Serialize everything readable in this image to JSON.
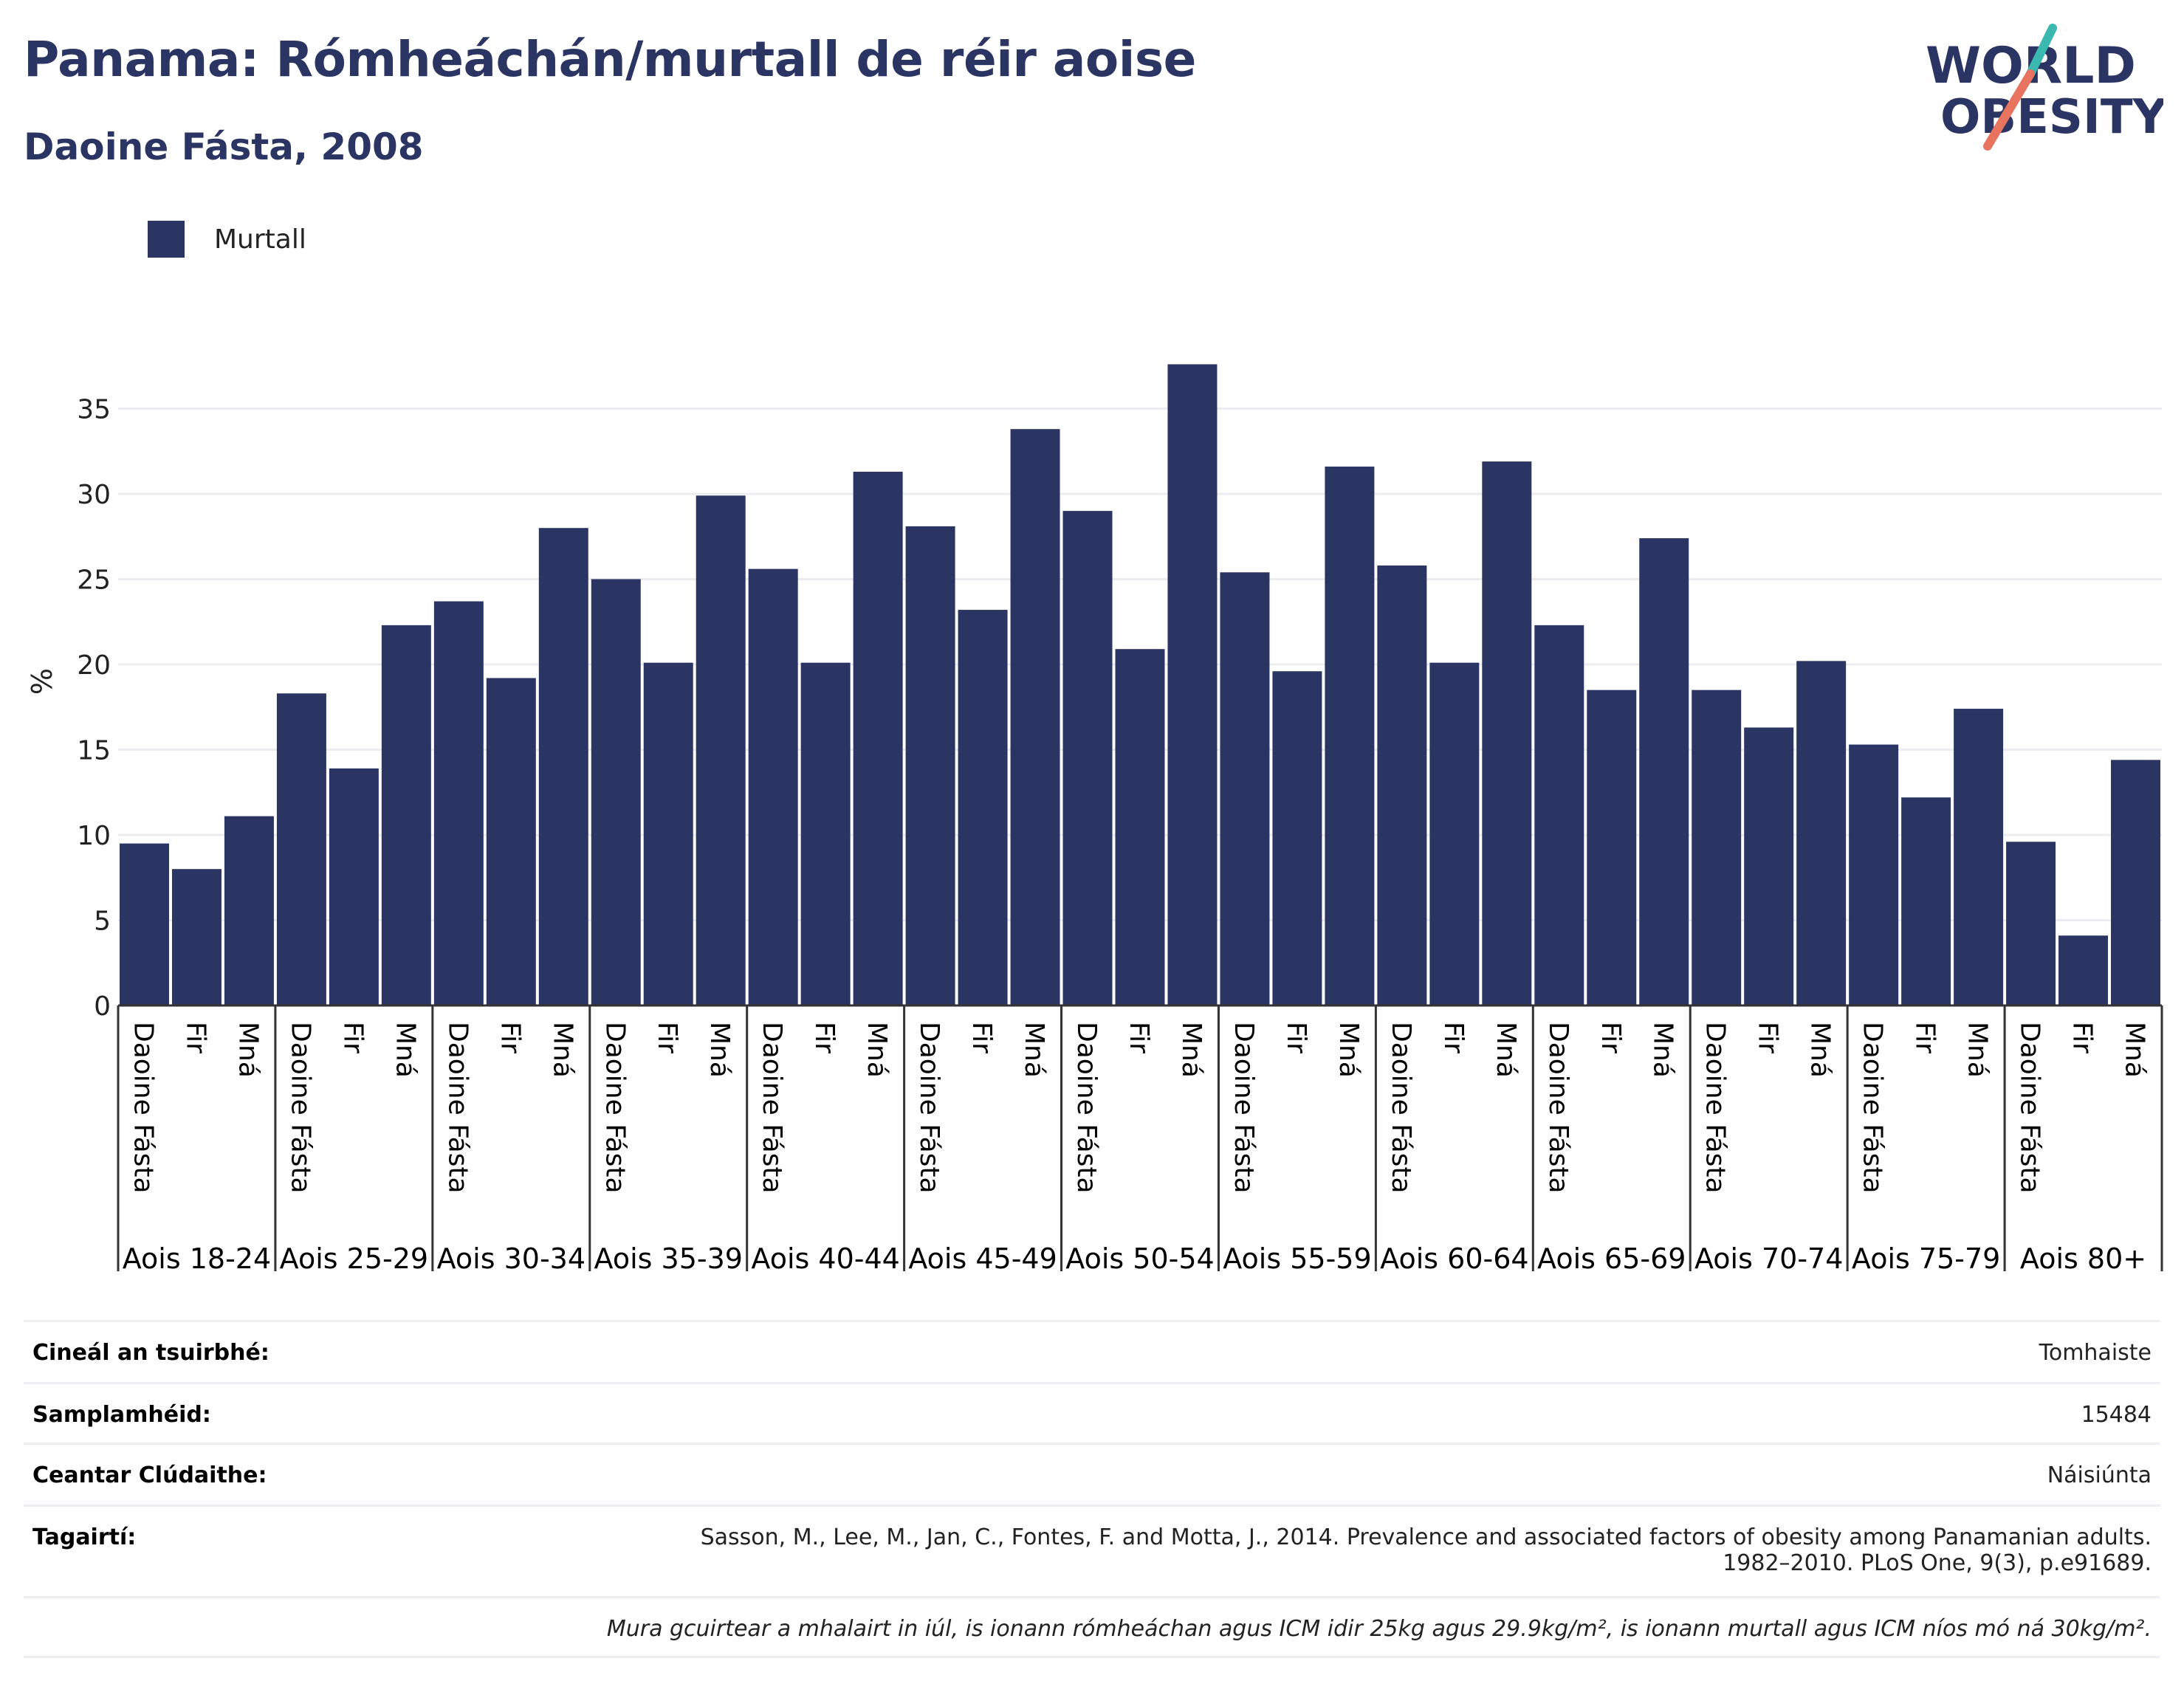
{
  "header": {
    "title": "Panama: Rómheáchán/murtall de réir aoise",
    "subtitle": "Daoine Fásta, 2008"
  },
  "logo": {
    "line1": "WORLD",
    "line2": "OBESITY"
  },
  "legend": {
    "label": "Murtall",
    "color": "#2b3563"
  },
  "chart_data": {
    "type": "bar",
    "ylabel": "%",
    "xlabel": "",
    "ylim": [
      0,
      38
    ],
    "yticks": [
      0,
      5,
      10,
      15,
      20,
      25,
      30,
      35
    ],
    "grid": true,
    "legend_position": "top-left",
    "bar_color": "#2b3563",
    "sub_categories": [
      "Daoine Fásta",
      "Fir",
      "Mná"
    ],
    "groups": [
      {
        "label": "Aois 18-24",
        "values": [
          9.5,
          8.0,
          11.1
        ]
      },
      {
        "label": "Aois 25-29",
        "values": [
          18.3,
          13.9,
          22.3
        ]
      },
      {
        "label": "Aois 30-34",
        "values": [
          23.7,
          19.2,
          28.0
        ]
      },
      {
        "label": "Aois 35-39",
        "values": [
          25.0,
          20.1,
          29.9
        ]
      },
      {
        "label": "Aois 40-44",
        "values": [
          25.6,
          20.1,
          31.3
        ]
      },
      {
        "label": "Aois 45-49",
        "values": [
          28.1,
          23.2,
          33.8
        ]
      },
      {
        "label": "Aois 50-54",
        "values": [
          29.0,
          20.9,
          37.6
        ]
      },
      {
        "label": "Aois 55-59",
        "values": [
          25.4,
          19.6,
          31.6
        ]
      },
      {
        "label": "Aois 60-64",
        "values": [
          25.8,
          20.1,
          31.9
        ]
      },
      {
        "label": "Aois 65-69",
        "values": [
          22.3,
          18.5,
          27.4
        ]
      },
      {
        "label": "Aois 70-74",
        "values": [
          18.5,
          16.3,
          20.2
        ]
      },
      {
        "label": "Aois 75-79",
        "values": [
          15.3,
          12.2,
          17.4
        ]
      },
      {
        "label": "Aois 80+",
        "values": [
          9.6,
          4.1,
          14.4
        ]
      }
    ]
  },
  "info": {
    "survey_type": {
      "label": "Cineál an tsuirbhé:",
      "value": "Tomhaiste"
    },
    "sample_size": {
      "label": "Samplamhéid:",
      "value": "15484"
    },
    "area": {
      "label": "Ceantar Clúdaithe:",
      "value": "Náisiúnta"
    },
    "references": {
      "label": "Tagairtí:",
      "line1": "Sasson, M., Lee, M., Jan, C., Fontes, F. and Motta, J., 2014. Prevalence and associated factors of obesity among Panamanian adults.",
      "line2": "1982–2010. PLoS One, 9(3), p.e91689."
    },
    "note": "Mura gcuirtear a mhalairt in iúl, is ionann rómheáchan agus ICM idir 25kg agus 29.9kg/m², is ionann murtall agus ICM níos mó ná 30kg/m²."
  }
}
